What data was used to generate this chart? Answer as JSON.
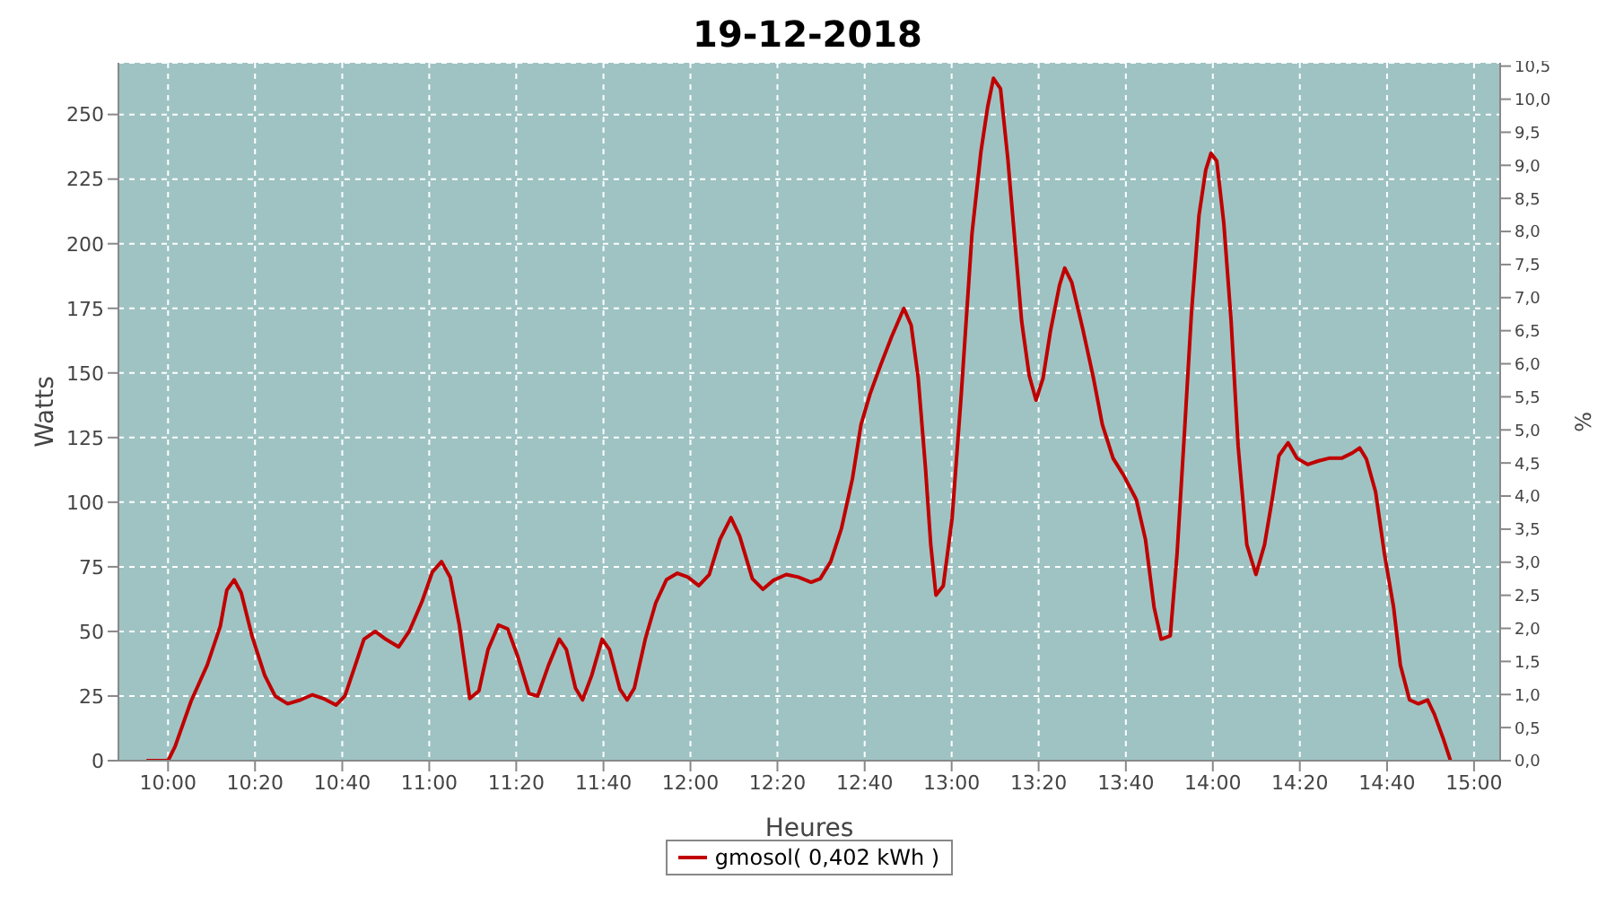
{
  "chart_data": {
    "type": "line",
    "title": "19-12-2018",
    "xlabel": "Heures",
    "ylabel": "Watts",
    "y2label": "%",
    "x": [
      9.917,
      10,
      10.027,
      10.088,
      10.15,
      10.2,
      10.225,
      10.253,
      10.28,
      10.322,
      10.37,
      10.41,
      10.458,
      10.507,
      10.553,
      10.595,
      10.643,
      10.677,
      10.717,
      10.75,
      10.793,
      10.833,
      10.883,
      10.923,
      10.972,
      11.012,
      11.047,
      11.08,
      11.115,
      11.155,
      11.19,
      11.225,
      11.265,
      11.3,
      11.34,
      11.382,
      11.415,
      11.457,
      11.498,
      11.525,
      11.56,
      11.587,
      11.622,
      11.662,
      11.69,
      11.73,
      11.758,
      11.785,
      11.827,
      11.867,
      11.908,
      11.95,
      11.99,
      12.032,
      12.072,
      12.113,
      12.155,
      12.188,
      12.237,
      12.277,
      12.318,
      12.367,
      12.413,
      12.462,
      12.497,
      12.537,
      12.578,
      12.62,
      12.653,
      12.688,
      12.728,
      12.77,
      12.817,
      12.845,
      12.872,
      12.9,
      12.92,
      12.94,
      12.968,
      13.002,
      13.037,
      13.078,
      13.112,
      13.138,
      13.16,
      13.187,
      13.215,
      13.242,
      13.268,
      13.297,
      13.323,
      13.35,
      13.378,
      13.413,
      13.433,
      13.46,
      13.502,
      13.543,
      13.577,
      13.618,
      13.658,
      13.707,
      13.742,
      13.775,
      13.802,
      13.837,
      13.863,
      13.892,
      13.918,
      13.947,
      13.973,
      13.993,
      14.015,
      14.042,
      14.07,
      14.097,
      14.13,
      14.165,
      14.198,
      14.227,
      14.253,
      14.288,
      14.322,
      14.363,
      14.405,
      14.445,
      14.493,
      14.533,
      14.562,
      14.588,
      14.623,
      14.657,
      14.692,
      14.718,
      14.753,
      14.787,
      14.822,
      14.848,
      14.883,
      14.91
    ],
    "series": [
      {
        "name": "gmosol( 0,402 kWh )",
        "color": "#c00000",
        "values": [
          0,
          0,
          5.5,
          23,
          37,
          52,
          66,
          70,
          65,
          48,
          33,
          25,
          22,
          23.5,
          25.5,
          24,
          21.5,
          25,
          37,
          47,
          50,
          47,
          44,
          50,
          61.5,
          73,
          77,
          71,
          52.5,
          24,
          27,
          43,
          52.5,
          51,
          40,
          26,
          25,
          37,
          47,
          43,
          28,
          23.5,
          33,
          47,
          43,
          27.6,
          23.5,
          28,
          47,
          61,
          70,
          72.5,
          71,
          67.7,
          72,
          85.6,
          94,
          87,
          70.4,
          66.3,
          69.8,
          72,
          71,
          69,
          70.4,
          77,
          89.8,
          109,
          130,
          142,
          153,
          164,
          175,
          168.5,
          148,
          113,
          83.6,
          64,
          67.7,
          94,
          142,
          204,
          235.5,
          253,
          264,
          260,
          233,
          201,
          170,
          149,
          139.5,
          148,
          166,
          184,
          190.6,
          185,
          167,
          148,
          130,
          117,
          110.5,
          101,
          85.6,
          59.4,
          47,
          48.3,
          80,
          128,
          173,
          211,
          228.6,
          235,
          232,
          208,
          170,
          121.5,
          83.6,
          72,
          83.6,
          101,
          118,
          123,
          117,
          114.6,
          116,
          117,
          117,
          119,
          121,
          116.7,
          104,
          80,
          59.4,
          37,
          23.5,
          22,
          23.5,
          18,
          8.3,
          0
        ]
      }
    ],
    "xlim": [
      9.81,
      15.1
    ],
    "xticks": [
      {
        "value": 10,
        "label": "10:00"
      },
      {
        "value": 10.333,
        "label": "10:20"
      },
      {
        "value": 10.667,
        "label": "10:40"
      },
      {
        "value": 11,
        "label": "11:00"
      },
      {
        "value": 11.333,
        "label": "11:20"
      },
      {
        "value": 11.667,
        "label": "11:40"
      },
      {
        "value": 12,
        "label": "12:00"
      },
      {
        "value": 12.333,
        "label": "12:20"
      },
      {
        "value": 12.667,
        "label": "12:40"
      },
      {
        "value": 13,
        "label": "13:00"
      },
      {
        "value": 13.333,
        "label": "13:20"
      },
      {
        "value": 13.667,
        "label": "13:40"
      },
      {
        "value": 14,
        "label": "14:00"
      },
      {
        "value": 14.333,
        "label": "14:20"
      },
      {
        "value": 14.667,
        "label": "14:40"
      },
      {
        "value": 15,
        "label": "15:00"
      }
    ],
    "ylim": [
      0,
      270
    ],
    "yticks": [
      0,
      25,
      50,
      75,
      100,
      125,
      150,
      175,
      200,
      225,
      250
    ],
    "y2lim": [
      0,
      10.55
    ],
    "y2ticks": [
      {
        "value": 0,
        "label": "0,0"
      },
      {
        "value": 0.5,
        "label": "0,5"
      },
      {
        "value": 1,
        "label": "1,0"
      },
      {
        "value": 1.5,
        "label": "1,5"
      },
      {
        "value": 2,
        "label": "2,0"
      },
      {
        "value": 2.5,
        "label": "2,5"
      },
      {
        "value": 3,
        "label": "3,0"
      },
      {
        "value": 3.5,
        "label": "3,5"
      },
      {
        "value": 4,
        "label": "4,0"
      },
      {
        "value": 4.5,
        "label": "4,5"
      },
      {
        "value": 5,
        "label": "5,0"
      },
      {
        "value": 5.5,
        "label": "5,5"
      },
      {
        "value": 6,
        "label": "6,0"
      },
      {
        "value": 6.5,
        "label": "6,5"
      },
      {
        "value": 7,
        "label": "7,0"
      },
      {
        "value": 7.5,
        "label": "7,5"
      },
      {
        "value": 8,
        "label": "8,0"
      },
      {
        "value": 8.5,
        "label": "8,5"
      },
      {
        "value": 9,
        "label": "9,0"
      },
      {
        "value": 9.5,
        "label": "9,5"
      },
      {
        "value": 10,
        "label": "10,0"
      },
      {
        "value": 10.5,
        "label": "10,5"
      }
    ],
    "grid": true,
    "legend": "bottom"
  }
}
